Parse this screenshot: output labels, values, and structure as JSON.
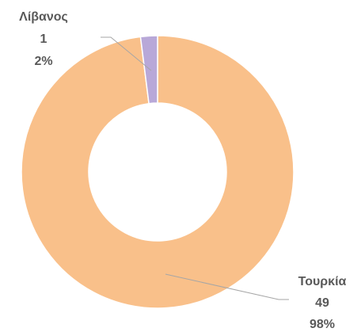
{
  "chart_data": {
    "type": "donut",
    "categories": [
      "Τουρκία",
      "Λίβανος"
    ],
    "values": [
      49,
      1
    ],
    "percentages": [
      98,
      2
    ],
    "percentage_labels": [
      "98%",
      "2%"
    ],
    "colors": [
      "#F9C08A",
      "#B8A8D8"
    ]
  }
}
